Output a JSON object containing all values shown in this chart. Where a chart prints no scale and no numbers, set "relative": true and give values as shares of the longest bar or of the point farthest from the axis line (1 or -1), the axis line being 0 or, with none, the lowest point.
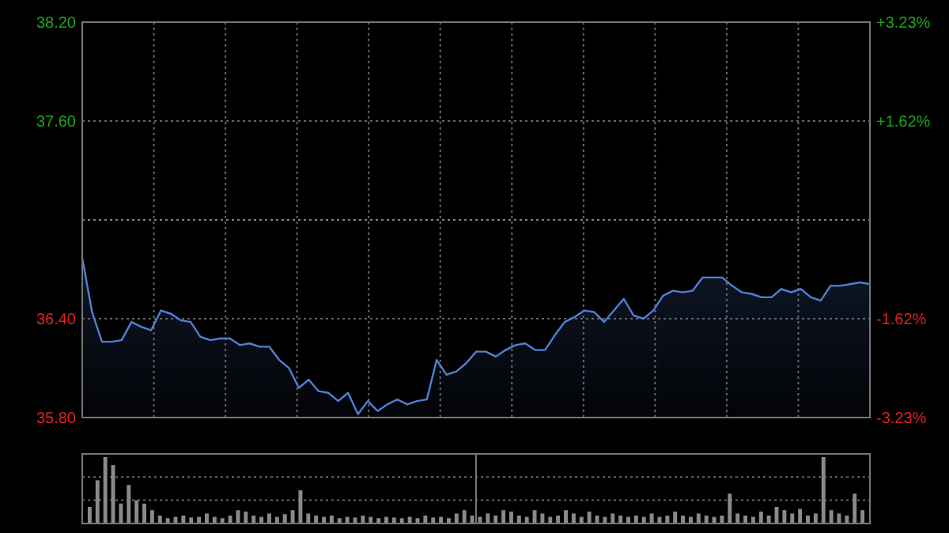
{
  "chart_data": [
    {
      "type": "area",
      "grid": true,
      "marker": "none",
      "line_style": "solid",
      "categories": [
        null,
        null,
        null,
        null,
        null,
        null,
        null,
        null,
        null,
        null,
        null,
        null,
        null,
        null,
        null,
        null,
        null,
        null,
        null,
        null,
        null,
        null,
        null,
        null,
        null,
        null,
        null,
        null,
        null,
        null,
        null,
        null,
        null,
        null,
        null,
        null,
        null,
        null,
        null,
        null,
        null,
        null,
        null,
        null,
        null,
        null,
        null,
        null,
        null,
        null,
        null,
        null,
        null,
        null,
        null,
        null,
        null,
        null,
        null,
        null,
        null,
        null,
        null,
        null,
        null,
        null,
        null,
        null,
        null,
        null,
        null,
        null,
        null,
        null,
        null,
        null,
        null,
        null,
        null,
        null,
        null
      ],
      "ylim": [
        35.8,
        38.2
      ],
      "yticks": [
        {
          "value": 35.8,
          "label": "35.80"
        },
        {
          "value": 36.4,
          "label": "36.40"
        },
        {
          "value": 37.6,
          "label": "37.60"
        },
        {
          "value": 38.2,
          "label": "38.20"
        }
      ],
      "y2lim": [
        -3.23,
        3.23
      ],
      "y2ticks": [
        {
          "value": -3.23,
          "label": "-3.23%"
        },
        {
          "value": -1.62,
          "label": "-1.62%"
        },
        {
          "value": 1.62,
          "label": "+1.62%"
        },
        {
          "value": 3.23,
          "label": "+3.23%"
        }
      ],
      "ref_lines": [
        {
          "axis": "y",
          "value": 37,
          "color": "#888888",
          "line_style": "dotted"
        }
      ],
      "series": [
        {
          "color": "#4f80d6",
          "values": [
            36.77,
            36.44,
            36.26,
            36.26,
            36.27,
            36.38,
            36.35,
            36.33,
            36.45,
            36.43,
            36.39,
            36.38,
            36.29,
            36.27,
            36.28,
            36.28,
            36.24,
            36.25,
            36.23,
            36.23,
            36.15,
            36.1,
            35.98,
            36.03,
            35.96,
            35.95,
            35.9,
            35.95,
            35.82,
            35.9,
            35.84,
            35.88,
            35.91,
            35.88,
            35.9,
            35.91,
            36.15,
            36.06,
            36.08,
            36.13,
            36.2,
            36.2,
            36.17,
            36.21,
            36.24,
            36.25,
            36.21,
            36.21,
            36.3,
            36.38,
            36.41,
            36.45,
            36.44,
            36.38,
            36.45,
            36.52,
            36.42,
            36.4,
            36.45,
            36.54,
            36.57,
            36.56,
            36.57,
            36.65,
            36.65,
            36.65,
            36.6,
            36.56,
            36.55,
            36.53,
            36.53,
            36.58,
            36.56,
            36.58,
            36.53,
            36.51,
            36.6,
            36.6,
            36.61,
            36.62,
            36.61
          ]
        }
      ]
    },
    {
      "type": "bar",
      "relative": true,
      "color": "#8a8a8a",
      "ref_lines": [
        {
          "axis": "y",
          "value": 0.35,
          "color": "#666666",
          "line_style": "dotted"
        },
        {
          "axis": "y",
          "value": 0.7,
          "color": "#666666",
          "line_style": "dotted"
        }
      ],
      "categories": [
        null,
        null,
        null,
        null,
        null,
        null,
        null,
        null,
        null,
        null,
        null,
        null,
        null,
        null,
        null,
        null,
        null,
        null,
        null,
        null,
        null,
        null,
        null,
        null,
        null,
        null,
        null,
        null,
        null,
        null,
        null,
        null,
        null,
        null,
        null,
        null,
        null,
        null,
        null,
        null,
        null,
        null,
        null,
        null,
        null,
        null,
        null,
        null,
        null,
        null,
        null,
        null,
        null,
        null,
        null,
        null,
        null,
        null,
        null,
        null,
        null,
        null,
        null,
        null,
        null,
        null,
        null,
        null,
        null,
        null,
        null,
        null,
        null,
        null,
        null,
        null,
        null,
        null,
        null,
        null,
        null,
        null,
        null,
        null,
        null,
        null,
        null,
        null,
        null,
        null,
        null,
        null,
        null,
        null,
        null,
        null,
        null,
        null,
        null,
        null
      ],
      "values": [
        0.25,
        0.65,
        1.0,
        0.88,
        0.3,
        0.58,
        0.35,
        0.3,
        0.2,
        0.12,
        0.08,
        0.1,
        0.12,
        0.09,
        0.1,
        0.15,
        0.1,
        0.08,
        0.12,
        0.2,
        0.18,
        0.12,
        0.1,
        0.15,
        0.1,
        0.14,
        0.2,
        0.5,
        0.15,
        0.12,
        0.1,
        0.12,
        0.08,
        0.1,
        0.09,
        0.12,
        0.1,
        0.08,
        0.1,
        0.09,
        0.08,
        0.1,
        0.08,
        0.12,
        0.09,
        0.1,
        0.08,
        0.15,
        0.2,
        0.12,
        0.1,
        0.15,
        0.12,
        0.2,
        0.18,
        0.12,
        0.1,
        0.2,
        0.15,
        0.1,
        0.12,
        0.2,
        0.15,
        0.1,
        0.18,
        0.12,
        0.1,
        0.15,
        0.12,
        0.1,
        0.12,
        0.1,
        0.15,
        0.1,
        0.12,
        0.18,
        0.12,
        0.1,
        0.15,
        0.12,
        0.1,
        0.12,
        0.45,
        0.15,
        0.12,
        0.1,
        0.18,
        0.12,
        0.25,
        0.2,
        0.15,
        0.22,
        0.12,
        0.15,
        1.0,
        0.2,
        0.15,
        0.12,
        0.45,
        0.2
      ]
    }
  ]
}
